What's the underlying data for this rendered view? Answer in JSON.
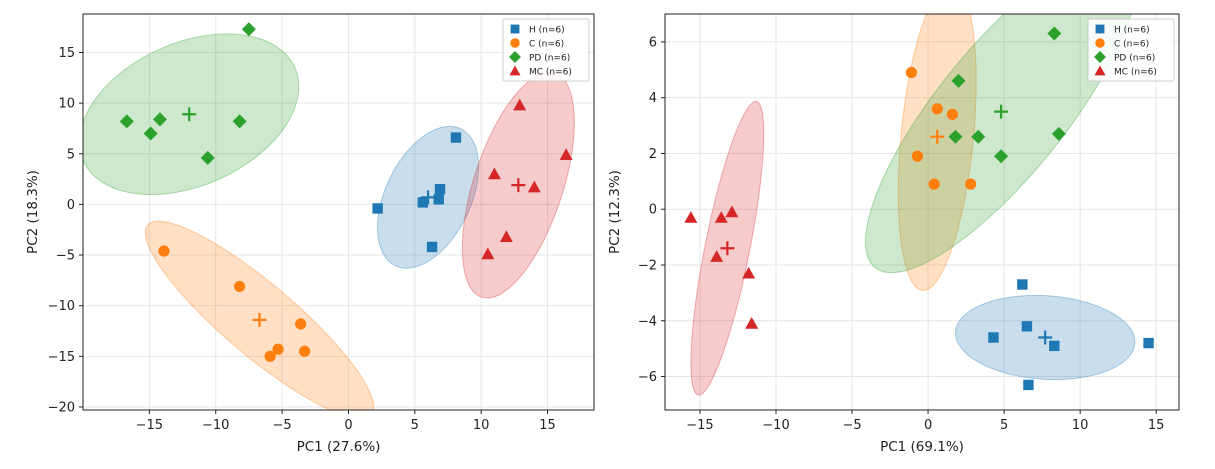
{
  "colors": {
    "H": "#1f77b4",
    "C": "#ff7f0e",
    "PD": "#2ca02c",
    "MC": "#d62728"
  },
  "chart_data": [
    {
      "type": "scatter",
      "xlabel": "PC1 (27.6%)",
      "ylabel": "PC2 (18.3%)",
      "xlim": [
        -20,
        18.5
      ],
      "ylim": [
        -20.3,
        18.8
      ],
      "xticks": [
        -15,
        -10,
        -5,
        0,
        5,
        10,
        15
      ],
      "yticks": [
        -20,
        -15,
        -10,
        -5,
        0,
        5,
        10,
        15
      ],
      "grid": true,
      "legend_position": "top-right",
      "series": [
        {
          "name": "H (n=6)",
          "group": "H",
          "marker": "square",
          "points": [
            [
              2.2,
              -0.4
            ],
            [
              5.6,
              0.2
            ],
            [
              6.3,
              -4.2
            ],
            [
              6.8,
              0.5
            ],
            [
              6.9,
              1.5
            ],
            [
              8.1,
              6.6
            ]
          ],
          "centroid": [
            6.0,
            0.7
          ],
          "ellipse": {
            "cx": 6.0,
            "cy": 0.7,
            "rx": 7.2,
            "ry": 3.3,
            "angle_deg": 70
          }
        },
        {
          "name": "C (n=6)",
          "group": "C",
          "marker": "circle",
          "points": [
            [
              -13.9,
              -4.6
            ],
            [
              -8.2,
              -8.1
            ],
            [
              -3.6,
              -11.8
            ],
            [
              -3.3,
              -14.5
            ],
            [
              -5.3,
              -14.3
            ],
            [
              -5.9,
              -15.0
            ]
          ],
          "centroid": [
            -6.7,
            -11.4
          ],
          "ellipse": {
            "cx": -6.7,
            "cy": -11.4,
            "rx": 12.6,
            "ry": 3.0,
            "angle_deg": -48
          }
        },
        {
          "name": "PD (n=6)",
          "group": "PD",
          "marker": "diamond",
          "points": [
            [
              -16.7,
              8.2
            ],
            [
              -14.9,
              7.0
            ],
            [
              -14.2,
              8.4
            ],
            [
              -10.6,
              4.6
            ],
            [
              -8.2,
              8.2
            ],
            [
              -7.5,
              17.3
            ]
          ],
          "centroid": [
            -12.0,
            8.9
          ],
          "ellipse": {
            "cx": -12.0,
            "cy": 8.9,
            "rx": 9.2,
            "ry": 6.5,
            "angle_deg": 30
          }
        },
        {
          "name": "MC (n=6)",
          "group": "MC",
          "marker": "triangle",
          "points": [
            [
              10.5,
              -4.9
            ],
            [
              11.0,
              3.0
            ],
            [
              11.9,
              -3.2
            ],
            [
              12.9,
              9.8
            ],
            [
              14.0,
              1.7
            ],
            [
              16.4,
              4.9
            ]
          ],
          "centroid": [
            12.8,
            1.9
          ],
          "ellipse": {
            "cx": 12.8,
            "cy": 1.9,
            "rx": 11.4,
            "ry": 3.4,
            "angle_deg": 76
          }
        }
      ]
    },
    {
      "type": "scatter",
      "xlabel": "PC1 (69.1%)",
      "ylabel": "PC2 (12.3%)",
      "xlim": [
        -17.3,
        16.5
      ],
      "ylim": [
        -7.2,
        7.0
      ],
      "xticks": [
        -15,
        -10,
        -5,
        0,
        5,
        10,
        15
      ],
      "yticks": [
        -6,
        -4,
        -2,
        0,
        2,
        4,
        6
      ],
      "grid": true,
      "legend_position": "top-right",
      "series": [
        {
          "name": "H (n=6)",
          "group": "H",
          "marker": "square",
          "points": [
            [
              4.3,
              -4.6
            ],
            [
              6.2,
              -2.7
            ],
            [
              6.5,
              -4.2
            ],
            [
              6.6,
              -6.3
            ],
            [
              8.3,
              -4.9
            ],
            [
              14.5,
              -4.8
            ]
          ],
          "centroid": [
            7.7,
            -4.6
          ],
          "ellipse": {
            "cx": 7.7,
            "cy": -4.6,
            "rx": 5.9,
            "ry": 1.5,
            "angle_deg": -2
          }
        },
        {
          "name": "C (n=6)",
          "group": "C",
          "marker": "circle",
          "points": [
            [
              -1.1,
              4.9
            ],
            [
              -0.7,
              1.9
            ],
            [
              0.4,
              0.9
            ],
            [
              0.6,
              3.6
            ],
            [
              1.6,
              3.4
            ],
            [
              2.8,
              0.9
            ]
          ],
          "centroid": [
            0.6,
            2.6
          ],
          "ellipse": {
            "cx": 0.6,
            "cy": 2.6,
            "rx": 5.6,
            "ry": 2.3,
            "angle_deg": 80
          }
        },
        {
          "name": "PD (n=6)",
          "group": "PD",
          "marker": "diamond",
          "points": [
            [
              1.8,
              2.6
            ],
            [
              2.0,
              4.6
            ],
            [
              3.3,
              2.6
            ],
            [
              4.8,
              1.9
            ],
            [
              8.3,
              6.3
            ],
            [
              8.6,
              2.7
            ]
          ],
          "centroid": [
            4.8,
            3.5
          ],
          "ellipse": {
            "cx": 4.8,
            "cy": 3.5,
            "rx": 10.0,
            "ry": 2.6,
            "angle_deg": 34
          }
        },
        {
          "name": "MC (n=6)",
          "group": "MC",
          "marker": "triangle",
          "points": [
            [
              -15.6,
              -0.3
            ],
            [
              -13.9,
              -1.7
            ],
            [
              -13.6,
              -0.3
            ],
            [
              -12.9,
              -0.1
            ],
            [
              -11.8,
              -2.3
            ],
            [
              -11.6,
              -4.1
            ]
          ],
          "centroid": [
            -13.2,
            -1.4
          ],
          "ellipse": {
            "cx": -13.2,
            "cy": -1.4,
            "rx": 5.6,
            "ry": 1.3,
            "angle_deg": 70
          }
        }
      ]
    }
  ]
}
